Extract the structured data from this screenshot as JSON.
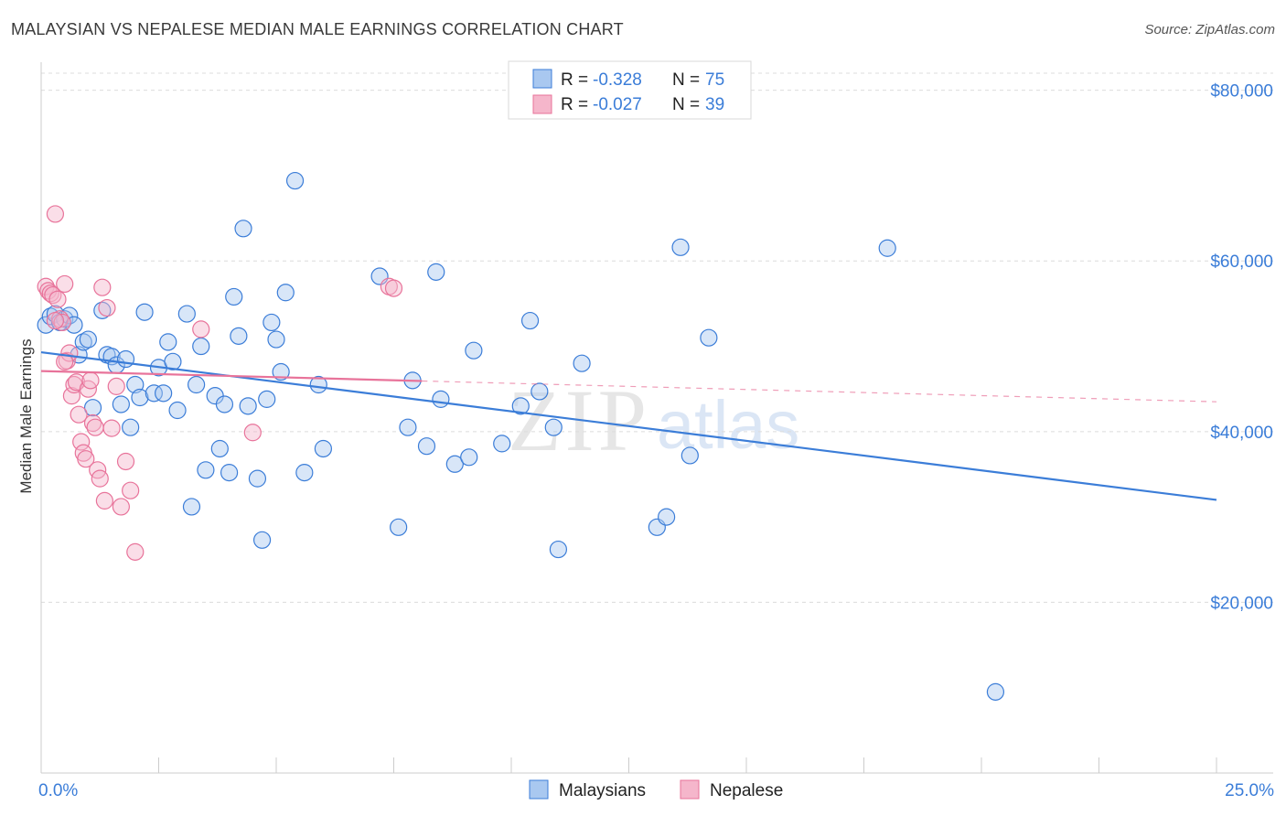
{
  "header": {
    "title": "MALAYSIAN VS NEPALESE MEDIAN MALE EARNINGS CORRELATION CHART",
    "source": "Source: ZipAtlas.com"
  },
  "legend": {
    "rows": [
      {
        "r_label": "R =",
        "r_value": "-0.328",
        "n_label": "N =",
        "n_value": "75"
      },
      {
        "r_label": "R =",
        "r_value": "-0.027",
        "n_label": "N =",
        "n_value": "39"
      }
    ]
  },
  "watermark": {
    "zip": "ZIP",
    "atlas": "atlas"
  },
  "colors": {
    "blue": "#3b7dd8",
    "blue_fill": "#a9c8f0",
    "pink": "#e8739a",
    "pink_fill": "#f5b6cb",
    "grid": "#dcdcdc",
    "axis": "#cccccc"
  },
  "chart_data": {
    "type": "scatter",
    "title": "MALAYSIAN VS NEPALESE MEDIAN MALE EARNINGS CORRELATION CHART",
    "xlabel": "",
    "ylabel": "Median Male Earnings",
    "xlim": [
      0,
      25
    ],
    "ylim": [
      0,
      82000
    ],
    "x_tick_labels": [
      {
        "x": 0,
        "label": "0.0%"
      },
      {
        "x": 25,
        "label": "25.0%"
      }
    ],
    "y_ticks": [
      {
        "y": 20000,
        "label": "$20,000"
      },
      {
        "y": 40000,
        "label": "$40,000"
      },
      {
        "y": 60000,
        "label": "$60,000"
      },
      {
        "y": 80000,
        "label": "$80,000"
      }
    ],
    "series": [
      {
        "name": "Malaysians",
        "color": "#3b7dd8",
        "r": -0.328,
        "n": 75,
        "trend": {
          "x0": 0.0,
          "y0": 49300,
          "x1": 25.0,
          "y1": 32000,
          "solid_to": 25.0
        },
        "points": [
          [
            0.1,
            52500
          ],
          [
            0.2,
            53500
          ],
          [
            0.3,
            53800
          ],
          [
            0.4,
            52800
          ],
          [
            0.5,
            53200
          ],
          [
            0.6,
            53600
          ],
          [
            0.7,
            52500
          ],
          [
            0.8,
            49000
          ],
          [
            0.9,
            50500
          ],
          [
            1.0,
            50800
          ],
          [
            1.1,
            42800
          ],
          [
            1.3,
            54200
          ],
          [
            1.4,
            49000
          ],
          [
            1.5,
            48800
          ],
          [
            1.6,
            47800
          ],
          [
            1.7,
            43200
          ],
          [
            1.8,
            48500
          ],
          [
            1.9,
            40500
          ],
          [
            2.0,
            45500
          ],
          [
            2.1,
            44000
          ],
          [
            2.2,
            54000
          ],
          [
            2.4,
            44500
          ],
          [
            2.5,
            47500
          ],
          [
            2.6,
            44500
          ],
          [
            2.7,
            50500
          ],
          [
            2.8,
            48200
          ],
          [
            2.9,
            42500
          ],
          [
            3.1,
            53800
          ],
          [
            3.2,
            31200
          ],
          [
            3.3,
            45500
          ],
          [
            3.4,
            50000
          ],
          [
            3.5,
            35500
          ],
          [
            3.7,
            44200
          ],
          [
            3.8,
            38000
          ],
          [
            3.9,
            43200
          ],
          [
            4.0,
            35200
          ],
          [
            4.1,
            55800
          ],
          [
            4.2,
            51200
          ],
          [
            4.3,
            63800
          ],
          [
            4.4,
            43000
          ],
          [
            4.6,
            34500
          ],
          [
            4.7,
            27300
          ],
          [
            4.8,
            43800
          ],
          [
            4.9,
            52800
          ],
          [
            5.0,
            50800
          ],
          [
            5.1,
            47000
          ],
          [
            5.2,
            56300
          ],
          [
            5.4,
            69400
          ],
          [
            5.6,
            35200
          ],
          [
            5.9,
            45500
          ],
          [
            6.0,
            38000
          ],
          [
            7.2,
            58200
          ],
          [
            7.6,
            28800
          ],
          [
            7.8,
            40500
          ],
          [
            7.9,
            46000
          ],
          [
            8.2,
            38300
          ],
          [
            8.4,
            58700
          ],
          [
            8.5,
            43800
          ],
          [
            8.8,
            36200
          ],
          [
            9.1,
            37000
          ],
          [
            9.2,
            49500
          ],
          [
            9.8,
            38600
          ],
          [
            10.2,
            43000
          ],
          [
            10.4,
            53000
          ],
          [
            10.6,
            44700
          ],
          [
            10.9,
            40500
          ],
          [
            11.0,
            26200
          ],
          [
            11.5,
            48000
          ],
          [
            13.1,
            28800
          ],
          [
            13.3,
            30000
          ],
          [
            13.8,
            37200
          ],
          [
            14.2,
            51000
          ],
          [
            18.0,
            61500
          ],
          [
            20.3,
            9500
          ],
          [
            13.6,
            61600
          ]
        ]
      },
      {
        "name": "Nepalese",
        "color": "#e8739a",
        "r": -0.027,
        "n": 39,
        "trend": {
          "x0": 0.0,
          "y0": 47100,
          "x1": 25.0,
          "y1": 43500,
          "solid_to": 8.1
        },
        "points": [
          [
            0.1,
            57000
          ],
          [
            0.15,
            56500
          ],
          [
            0.2,
            56200
          ],
          [
            0.25,
            56000
          ],
          [
            0.3,
            65500
          ],
          [
            0.35,
            55500
          ],
          [
            0.4,
            53200
          ],
          [
            0.45,
            52800
          ],
          [
            0.5,
            57300
          ],
          [
            0.55,
            48300
          ],
          [
            0.6,
            49200
          ],
          [
            0.65,
            44200
          ],
          [
            0.7,
            45500
          ],
          [
            0.75,
            45800
          ],
          [
            0.8,
            42000
          ],
          [
            0.85,
            38800
          ],
          [
            0.9,
            37500
          ],
          [
            0.95,
            36800
          ],
          [
            1.0,
            45000
          ],
          [
            1.05,
            46000
          ],
          [
            1.1,
            41000
          ],
          [
            1.15,
            40500
          ],
          [
            1.2,
            35500
          ],
          [
            1.25,
            34500
          ],
          [
            1.3,
            56900
          ],
          [
            1.35,
            31900
          ],
          [
            1.4,
            54500
          ],
          [
            1.5,
            40400
          ],
          [
            1.6,
            45300
          ],
          [
            1.7,
            31200
          ],
          [
            1.8,
            36500
          ],
          [
            1.9,
            33100
          ],
          [
            2.0,
            25900
          ],
          [
            3.4,
            52000
          ],
          [
            4.5,
            39900
          ],
          [
            7.4,
            57000
          ],
          [
            7.5,
            56800
          ],
          [
            0.3,
            53000
          ],
          [
            0.5,
            48200
          ]
        ]
      }
    ]
  },
  "bottom_legend": {
    "items": [
      {
        "label": "Malaysians"
      },
      {
        "label": "Nepalese"
      }
    ]
  }
}
